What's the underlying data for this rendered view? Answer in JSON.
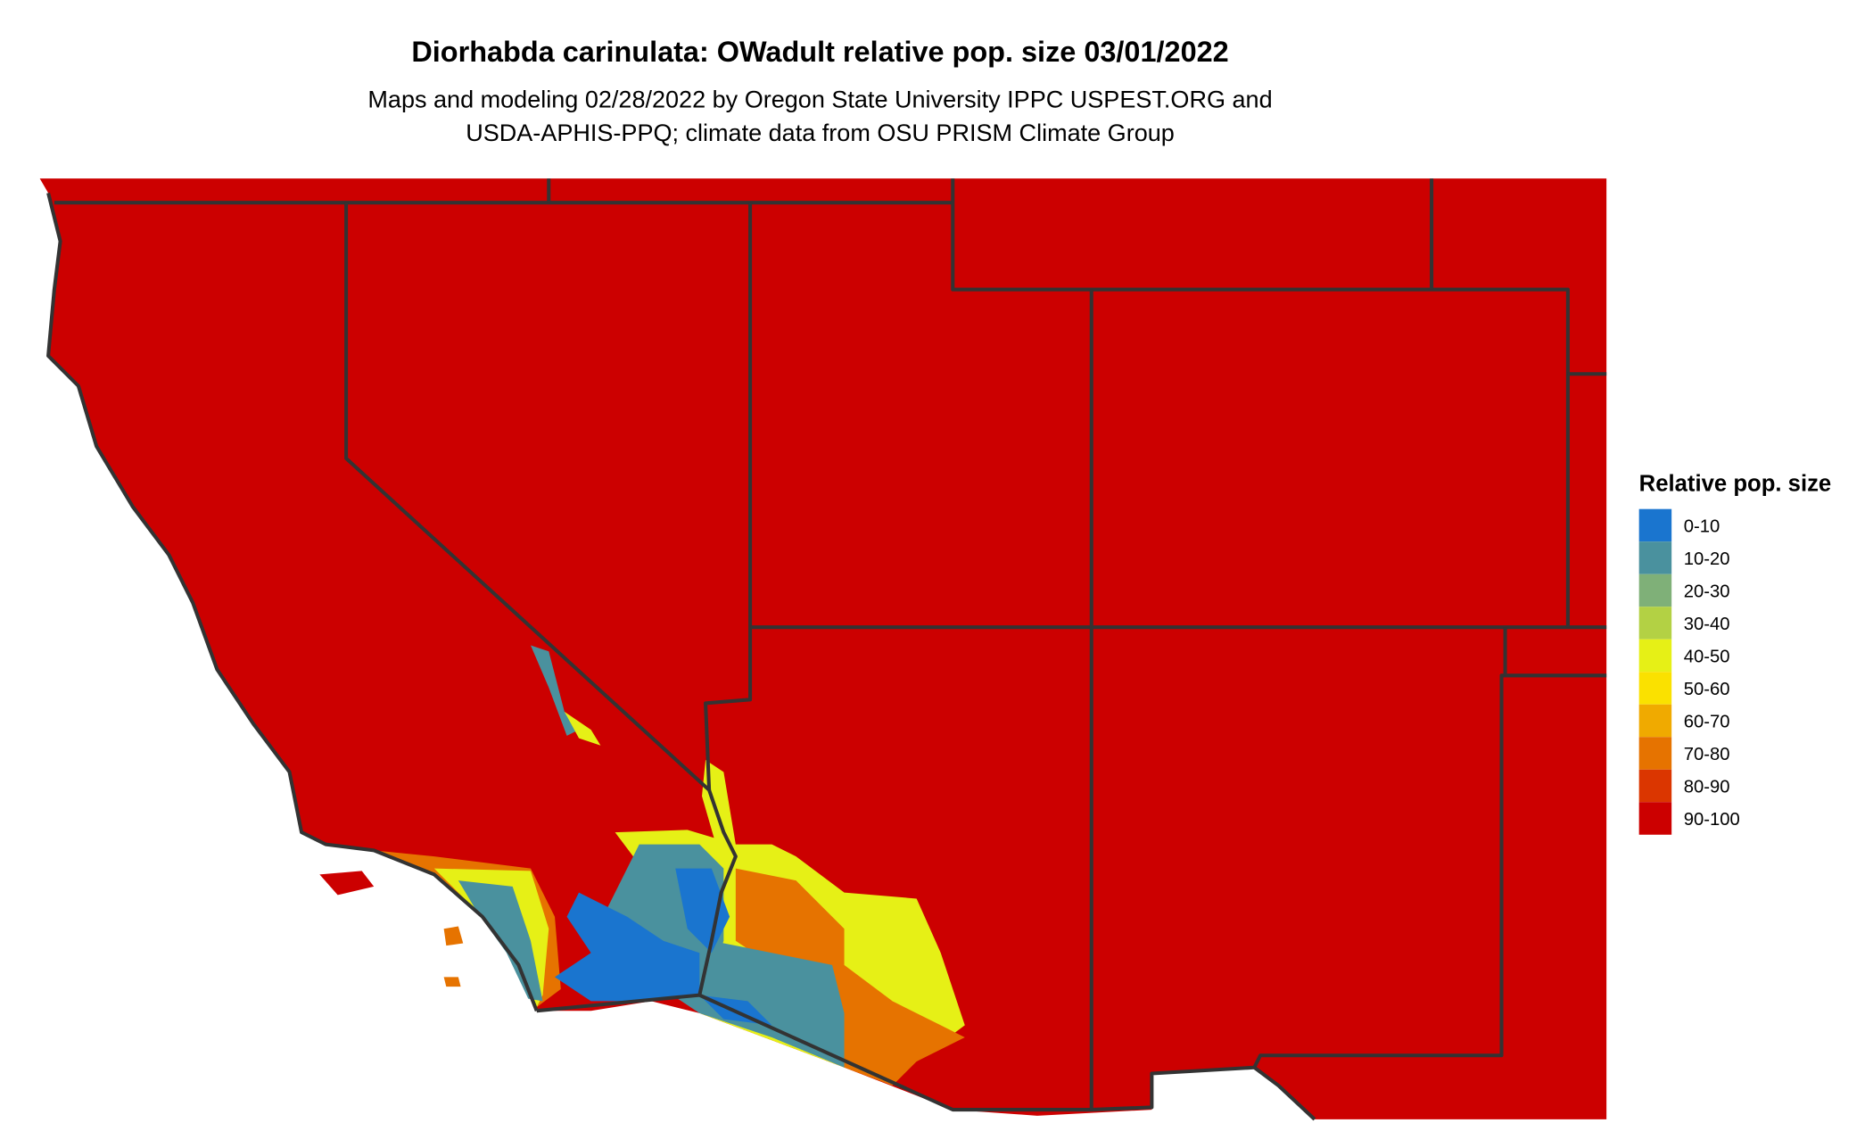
{
  "title": "Diorhabda carinulata: OWadult relative pop. size 03/01/2022",
  "subtitle_line1": "Maps and modeling 02/28/2022 by Oregon State University IPPC USPEST.ORG and",
  "subtitle_line2": "USDA-APHIS-PPQ; climate data from OSU PRISM Climate Group",
  "legend": {
    "title": "Relative pop. size",
    "items": [
      {
        "label": "0-10",
        "color": "#1a75cf"
      },
      {
        "label": "10-20",
        "color": "#4a919e"
      },
      {
        "label": "20-30",
        "color": "#7fb078"
      },
      {
        "label": "30-40",
        "color": "#b3d144"
      },
      {
        "label": "40-50",
        "color": "#e6f016"
      },
      {
        "label": "50-60",
        "color": "#fae100"
      },
      {
        "label": "60-70",
        "color": "#f0aa00"
      },
      {
        "label": "70-80",
        "color": "#e67300"
      },
      {
        "label": "80-90",
        "color": "#db3600"
      },
      {
        "label": "90-100",
        "color": "#cc0000"
      }
    ]
  },
  "background_color": "#cc0000",
  "border_color": "#333333"
}
